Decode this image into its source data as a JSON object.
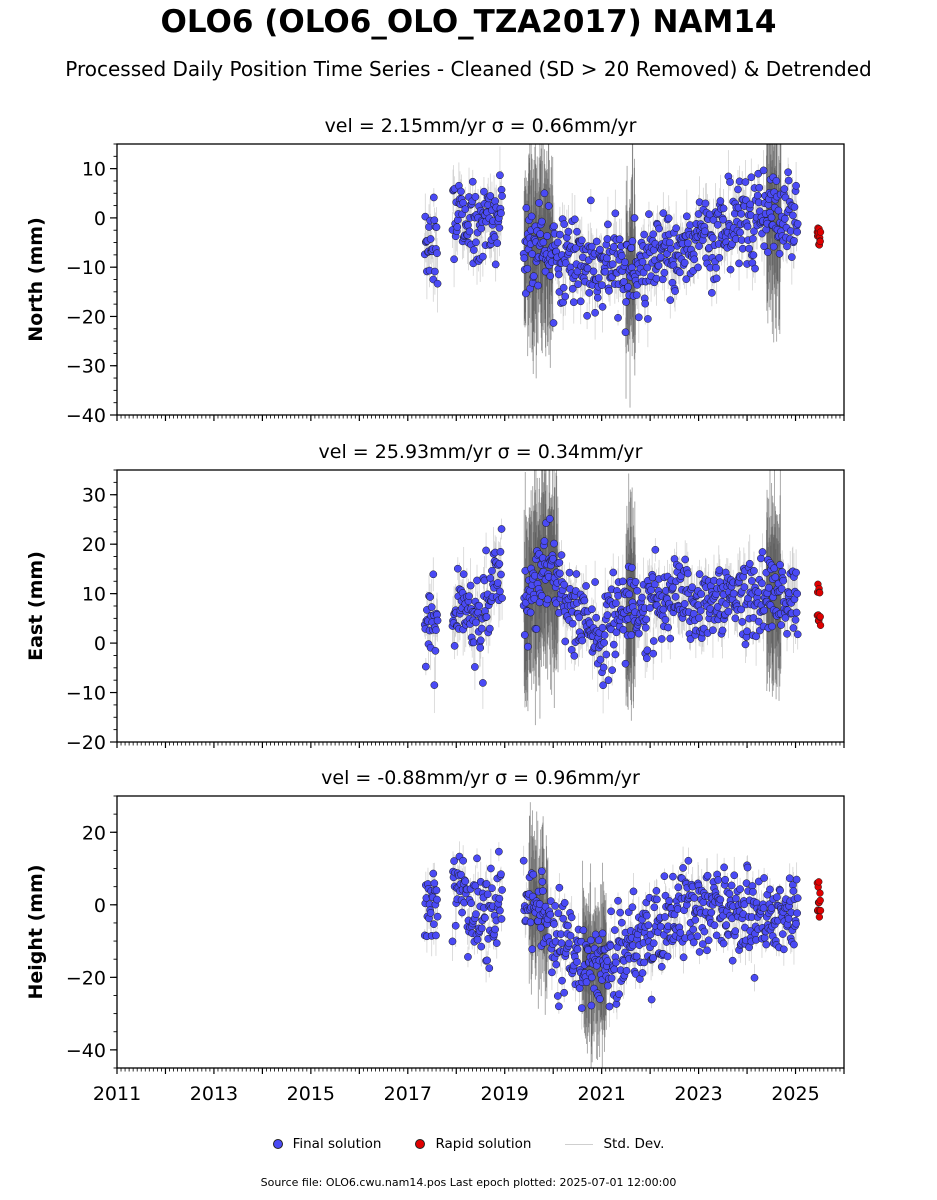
{
  "header": {
    "title": "OLO6 (OLO6_OLO_TZA2017) NAM14",
    "subtitle": "Processed Daily Position Time Series - Cleaned (SD > 20 Removed) & Detrended"
  },
  "legend": {
    "final": "Final solution",
    "rapid": "Rapid solution",
    "std": "Std. Dev."
  },
  "footer": {
    "source": "Source file: OLO6.cwu.nam14.pos  Last epoch plotted: 2025-07-01 12:00:00"
  },
  "colors": {
    "final": "#4a4af5",
    "rapid": "#e00000",
    "std_light": "#c8c8c8",
    "std_dark": "#555555"
  },
  "chart_data": [
    {
      "type": "scatter",
      "title": "vel = 2.15mm/yr   σ = 0.66mm/yr",
      "ylabel": "North (mm)",
      "xlim": [
        2011,
        2026
      ],
      "ylim": [
        -40,
        15
      ],
      "yticks": [
        10,
        0,
        -10,
        -20,
        -30,
        -40
      ],
      "ytick_labels": [
        "10",
        "0",
        "−10",
        "−20",
        "−30",
        "−40"
      ],
      "trend": [
        [
          2017.4,
          -6
        ],
        [
          2017.8,
          -3
        ],
        [
          2018.0,
          0
        ],
        [
          2018.5,
          -2
        ],
        [
          2018.9,
          1
        ],
        [
          2019.4,
          -6
        ],
        [
          2019.8,
          -4
        ],
        [
          2020.1,
          -7
        ],
        [
          2020.6,
          -10
        ],
        [
          2020.9,
          -12
        ],
        [
          2021.3,
          -10
        ],
        [
          2021.8,
          -11
        ],
        [
          2022.3,
          -8
        ],
        [
          2022.8,
          -5
        ],
        [
          2023.3,
          -4
        ],
        [
          2023.8,
          -1
        ],
        [
          2024.3,
          0
        ],
        [
          2024.8,
          0
        ],
        [
          2025.0,
          0
        ]
      ],
      "spread": 4.5,
      "final_x": [
        2017.35,
        2025.05
      ],
      "rapid_x": [
        2025.45,
        2025.52
      ],
      "rapid_y": [
        -2,
        -6
      ],
      "dark_std_ranges": [
        [
          2019.4,
          2020.0
        ],
        [
          2021.5,
          2021.7
        ],
        [
          2024.4,
          2024.7
        ]
      ]
    },
    {
      "type": "scatter",
      "title": "vel = 25.93mm/yr   σ = 0.34mm/yr",
      "ylabel": "East (mm)",
      "xlim": [
        2011,
        2026
      ],
      "ylim": [
        -20,
        35
      ],
      "yticks": [
        30,
        20,
        10,
        0,
        -10,
        -20
      ],
      "ytick_labels": [
        "30",
        "20",
        "10",
        "0",
        "−10",
        "−20"
      ],
      "trend": [
        [
          2017.4,
          3
        ],
        [
          2017.7,
          4
        ],
        [
          2018.0,
          8
        ],
        [
          2018.5,
          6
        ],
        [
          2018.9,
          14
        ],
        [
          2019.4,
          6
        ],
        [
          2019.8,
          16
        ],
        [
          2020.1,
          12
        ],
        [
          2020.6,
          6
        ],
        [
          2021.0,
          0
        ],
        [
          2021.5,
          8
        ],
        [
          2022.0,
          7
        ],
        [
          2022.5,
          9
        ],
        [
          2023.0,
          8
        ],
        [
          2023.5,
          9
        ],
        [
          2024.0,
          10
        ],
        [
          2024.5,
          10
        ],
        [
          2025.0,
          8
        ]
      ],
      "spread": 4.0,
      "final_x": [
        2017.35,
        2025.05
      ],
      "rapid_x": [
        2025.45,
        2025.52
      ],
      "rapid_y": [
        3,
        12
      ],
      "dark_std_ranges": [
        [
          2019.4,
          2020.1
        ],
        [
          2021.5,
          2021.7
        ],
        [
          2024.4,
          2024.7
        ]
      ]
    },
    {
      "type": "scatter",
      "title": "vel = -0.88mm/yr   σ = 0.96mm/yr",
      "ylabel": "Height (mm)",
      "xlim": [
        2011,
        2026
      ],
      "ylim": [
        -45,
        30
      ],
      "yticks": [
        20,
        0,
        -20,
        -40
      ],
      "ytick_labels": [
        "20",
        "0",
        "−20",
        "−40"
      ],
      "trend": [
        [
          2017.4,
          0
        ],
        [
          2017.7,
          2
        ],
        [
          2018.0,
          5
        ],
        [
          2018.5,
          -5
        ],
        [
          2018.9,
          0
        ],
        [
          2019.4,
          2
        ],
        [
          2019.8,
          -2
        ],
        [
          2020.1,
          -10
        ],
        [
          2020.6,
          -15
        ],
        [
          2021.0,
          -20
        ],
        [
          2021.5,
          -10
        ],
        [
          2022.0,
          -8
        ],
        [
          2022.5,
          -3
        ],
        [
          2023.0,
          -2
        ],
        [
          2023.5,
          0
        ],
        [
          2024.0,
          -3
        ],
        [
          2024.5,
          -3
        ],
        [
          2025.0,
          -2
        ]
      ],
      "spread": 6.0,
      "final_x": [
        2017.35,
        2025.05
      ],
      "rapid_x": [
        2025.45,
        2025.52
      ],
      "rapid_y": [
        -5,
        8
      ],
      "dark_std_ranges": [
        [
          2019.5,
          2019.9
        ],
        [
          2020.6,
          2021.1
        ]
      ]
    }
  ],
  "xaxis": {
    "ticks": [
      2011,
      2013,
      2015,
      2017,
      2019,
      2021,
      2023,
      2025
    ],
    "tick_labels": [
      "2011",
      "2013",
      "2015",
      "2017",
      "2019",
      "2021",
      "2023",
      "2025"
    ]
  }
}
